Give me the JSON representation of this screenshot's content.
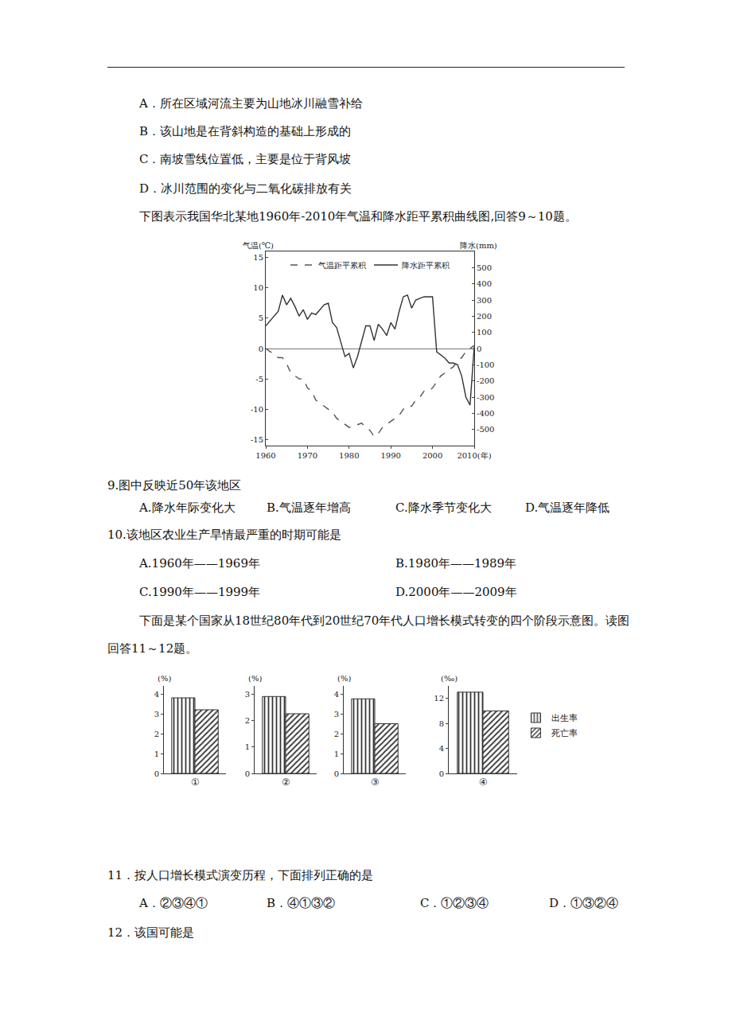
{
  "q8_options": [
    "A．所在区域河流主要为山地冰川融雪补给",
    "B．该山地是在背斜构造的基础上形成的",
    "C．南坡雪线位置低，主要是位于背风坡",
    "D．冰川范围的变化与二氧化碳排放有关"
  ],
  "intro_9_10": "下图表示我国华北某地1960年-2010年气温和降水距平累积曲线图,回答9～10题。",
  "q9": {
    "stem": "9.图中反映近50年该地区",
    "options": [
      "A.降水年际变化大",
      "B.气温逐年增高",
      "C.降水季节变化大",
      "D.气温逐年降低"
    ]
  },
  "q10": {
    "stem": "10.该地区农业生产旱情最严重的时期可能是",
    "options": [
      "A.1960年——1969年",
      "B.1980年——1989年",
      "C.1990年——1999年",
      "D.2000年——2009年"
    ]
  },
  "intro_11_12": "下面是某个国家从18世纪80年代到20世纪70年代人口增长模式转变的四个阶段示意图。读图回答11～12题。",
  "q11": {
    "stem": "11．按人口增长模式演变历程，下面排列正确的是",
    "options": [
      "A．②③④①",
      "B．④①③②",
      "C．①②③④",
      "D．①③②④"
    ]
  },
  "q12": {
    "stem": "12．该国可能是"
  },
  "chart_data": [
    {
      "type": "line",
      "y_label": "气温(℃)",
      "y2_label": "降水(mm)",
      "x": [
        1960,
        1961,
        1962,
        1963,
        1964,
        1965,
        1966,
        1967,
        1968,
        1969,
        1970,
        1971,
        1972,
        1973,
        1974,
        1975,
        1976,
        1977,
        1978,
        1979,
        1980,
        1981,
        1982,
        1983,
        1984,
        1985,
        1986,
        1987,
        1988,
        1989,
        1990,
        1991,
        1992,
        1993,
        1994,
        1995,
        1996,
        1997,
        1998,
        1999,
        2000,
        2001,
        2002,
        2003,
        2004,
        2005,
        2006,
        2007,
        2008,
        2009,
        2010
      ],
      "series": [
        {
          "name": "气温距平累积",
          "color": "#555555",
          "line_style": "dash",
          "values": [
            0,
            -0.5,
            -0.8,
            -1.5,
            -1.5,
            -2.5,
            -4,
            -4.5,
            -5,
            -5,
            -6.5,
            -7,
            -8.5,
            -9,
            -9.5,
            -10,
            -10.5,
            -11.5,
            -12,
            -12.5,
            -13,
            -12.8,
            -12.5,
            -12.3,
            -13,
            -13.5,
            -14.5,
            -14,
            -13,
            -12.5,
            -12,
            -11.5,
            -11,
            -10,
            -9.5,
            -9.5,
            -8.5,
            -8,
            -7,
            -7,
            -6.5,
            -5.5,
            -4.5,
            -4,
            -3.5,
            -3,
            -2,
            -1.5,
            -0.5,
            0,
            0.5
          ]
        },
        {
          "name": "降水距平累积",
          "color": "#333333",
          "line_style": "solid",
          "axis": "y2",
          "values": [
            140,
            170,
            200,
            230,
            330,
            270,
            310,
            260,
            200,
            240,
            180,
            220,
            210,
            240,
            270,
            280,
            160,
            130,
            40,
            -50,
            -30,
            -120,
            -50,
            40,
            140,
            140,
            50,
            150,
            120,
            80,
            160,
            120,
            230,
            320,
            330,
            250,
            300,
            310,
            320,
            320,
            320,
            -20,
            -40,
            -60,
            -90,
            -90,
            -100,
            -170,
            -300,
            -350,
            10
          ]
        }
      ],
      "xlim": [
        1960,
        2010
      ],
      "xticks": [
        1960,
        1970,
        1980,
        1990,
        2000,
        {
          "value": 2010,
          "label": "2010(年)"
        }
      ],
      "ylim": [
        -16,
        16
      ],
      "yticks": [
        -15,
        -10,
        -5,
        0,
        5,
        10,
        15
      ],
      "y2lim": [
        -600,
        600
      ],
      "y2ticks": [
        -500,
        -400,
        -300,
        -200,
        -100,
        0,
        100,
        200,
        300,
        400,
        500
      ],
      "legend": "top",
      "grid": false
    },
    {
      "type": "bar",
      "y_label": "(%)",
      "categories": [
        "①"
      ],
      "series": [
        {
          "name": "出生率",
          "color": "#333333",
          "marker": "vertical-hatch",
          "values": [
            3.8
          ]
        },
        {
          "name": "死亡率",
          "color": "#333333",
          "marker": "diagonal-hatch",
          "values": [
            3.2
          ]
        }
      ],
      "ylim": [
        0,
        4.4
      ],
      "yticks": [
        0,
        1,
        2,
        3,
        4
      ],
      "grid": false
    },
    {
      "type": "bar",
      "y_label": "(%)",
      "categories": [
        "②"
      ],
      "series": [
        {
          "name": "出生率",
          "color": "#333333",
          "marker": "vertical-hatch",
          "values": [
            2.9
          ]
        },
        {
          "name": "死亡率",
          "color": "#333333",
          "marker": "diagonal-hatch",
          "values": [
            2.25
          ]
        }
      ],
      "ylim": [
        0,
        3.3
      ],
      "yticks": [
        0,
        1,
        2,
        3
      ],
      "grid": false
    },
    {
      "type": "bar",
      "y_label": "(%)",
      "categories": [
        "③"
      ],
      "series": [
        {
          "name": "出生率",
          "color": "#333333",
          "marker": "vertical-hatch",
          "values": [
            3.75
          ]
        },
        {
          "name": "死亡率",
          "color": "#333333",
          "marker": "diagonal-hatch",
          "values": [
            2.5
          ]
        }
      ],
      "ylim": [
        0,
        4.4
      ],
      "yticks": [
        0,
        1,
        2,
        3,
        4
      ],
      "grid": false
    },
    {
      "type": "bar",
      "y_label": "(‰)",
      "categories": [
        "④"
      ],
      "series": [
        {
          "name": "出生率",
          "color": "#333333",
          "marker": "vertical-hatch",
          "values": [
            13
          ]
        },
        {
          "name": "死亡率",
          "color": "#333333",
          "marker": "diagonal-hatch",
          "values": [
            10
          ]
        }
      ],
      "ylim": [
        0,
        14
      ],
      "yticks": [
        0,
        4,
        8,
        12
      ],
      "grid": false,
      "legend": "right"
    }
  ]
}
